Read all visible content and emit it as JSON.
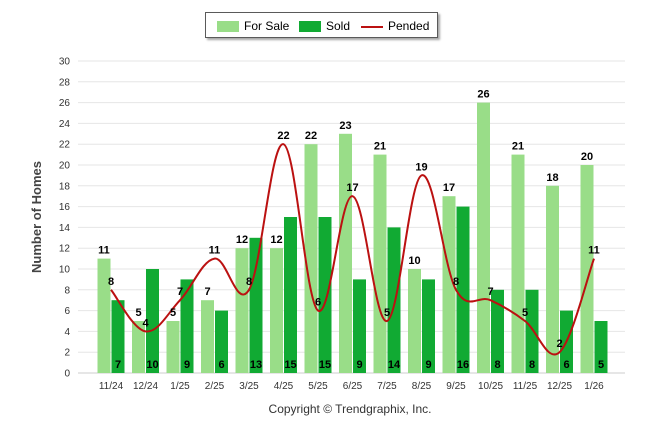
{
  "chart_data": {
    "type": "bar",
    "title": "",
    "xlabel": "",
    "ylabel": "Number of Homes",
    "ylim": [
      0,
      30
    ],
    "yticks": [
      0,
      2,
      4,
      6,
      8,
      10,
      12,
      14,
      16,
      18,
      20,
      22,
      24,
      26,
      28,
      30
    ],
    "categories": [
      "11/24",
      "12/24",
      "1/25",
      "2/25",
      "3/25",
      "4/25",
      "5/25",
      "6/25",
      "7/25",
      "8/25",
      "9/25",
      "10/25",
      "11/25",
      "12/25",
      "1/26"
    ],
    "series": [
      {
        "name": "For Sale",
        "kind": "bar",
        "color": "#99dd88",
        "values": [
          11,
          5,
          5,
          7,
          12,
          12,
          22,
          23,
          21,
          10,
          17,
          26,
          21,
          18,
          20
        ]
      },
      {
        "name": "Sold",
        "kind": "bar",
        "color": "#11aa33",
        "values": [
          7,
          10,
          9,
          6,
          13,
          15,
          15,
          9,
          14,
          9,
          16,
          8,
          8,
          6,
          5
        ]
      },
      {
        "name": "Pended",
        "kind": "line",
        "color": "#bb1111",
        "values": [
          8,
          4,
          7,
          11,
          8,
          22,
          6,
          17,
          5,
          19,
          8,
          7,
          5,
          2,
          11
        ]
      }
    ],
    "legend_position": "top-center",
    "footer": "Copyright © Trendgraphix, Inc."
  }
}
